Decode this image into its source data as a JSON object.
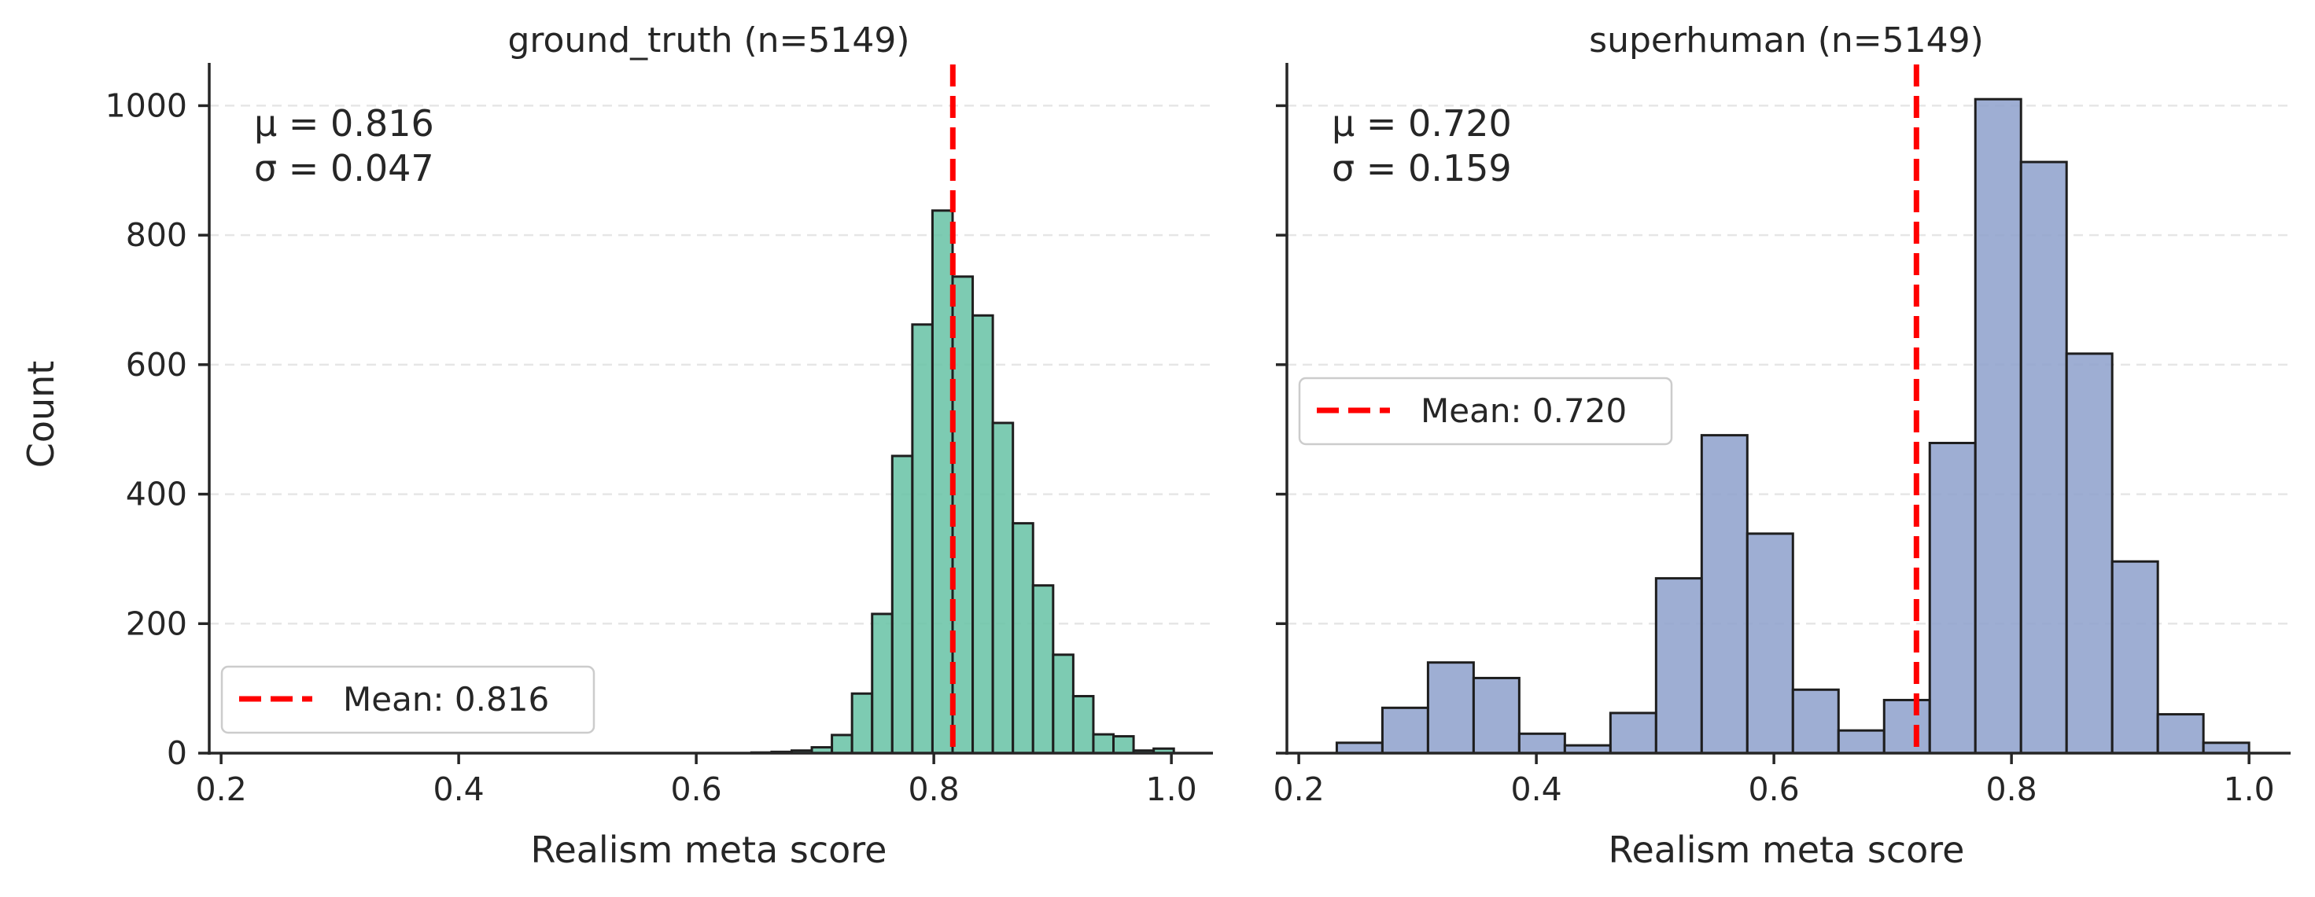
{
  "chart_data": [
    {
      "type": "bar",
      "title": "ground_truth (n=5149)",
      "xlabel": "Realism meta score",
      "ylabel": "Count",
      "xlim": [
        0.19,
        1.035
      ],
      "ylim": [
        0,
        1060
      ],
      "xticks": [
        "0.2",
        "0.4",
        "0.6",
        "0.8",
        "1.0"
      ],
      "yticks": [
        "0",
        "200",
        "400",
        "600",
        "800",
        "1000"
      ],
      "color": "#66c2a5",
      "bin_width": 0.01693,
      "bin_edges_start": 0.6465,
      "values": [
        1,
        2,
        4,
        9,
        28,
        92,
        215,
        459,
        662,
        838,
        736,
        676,
        510,
        355,
        259,
        152,
        88,
        29,
        26,
        4,
        7
      ],
      "mean": 0.816,
      "std": 0.047,
      "mu_text": "μ = 0.816",
      "sigma_text": "σ = 0.047",
      "legend_label": "Mean: 0.816",
      "legend_position": "lower-left",
      "mean_line_color": "#ff0000"
    },
    {
      "type": "bar",
      "title": "superhuman (n=5149)",
      "xlabel": "Realism meta score",
      "ylabel": "",
      "xlim": [
        0.19,
        1.035
      ],
      "ylim": [
        0,
        1060
      ],
      "xticks": [
        "0.2",
        "0.4",
        "0.6",
        "0.8",
        "1.0"
      ],
      "yticks": [
        "0",
        "200",
        "400",
        "600",
        "800",
        "1000"
      ],
      "color": "#8da0cb",
      "bin_width": 0.0384,
      "bin_edges_start": 0.232,
      "values": [
        16,
        70,
        140,
        116,
        30,
        12,
        62,
        270,
        491,
        339,
        98,
        35,
        82,
        479,
        1010,
        913,
        617,
        296,
        60,
        16
      ],
      "mean": 0.72,
      "std": 0.159,
      "mu_text": "μ = 0.720",
      "sigma_text": "σ = 0.159",
      "legend_label": "Mean: 0.720",
      "legend_position": "center-left",
      "mean_line_color": "#ff0000"
    }
  ]
}
